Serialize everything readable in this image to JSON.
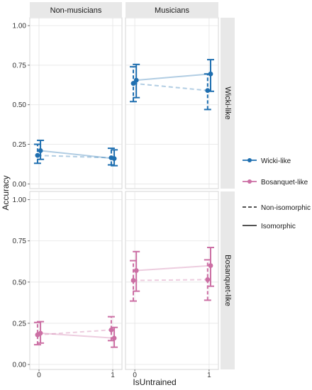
{
  "chart_data": {
    "type": "scatter",
    "title": "",
    "xlabel": "IsUntrained",
    "ylabel": "Accuracy",
    "x_ticks": [
      0,
      1
    ],
    "ylim": [
      -0.03,
      1.05
    ],
    "y_ticks": [
      "0.00",
      "0.25",
      "0.50",
      "0.75",
      "1.00"
    ],
    "facet_columns": [
      "Non-musicians",
      "Musicians"
    ],
    "facet_rows": [
      "Wicki-like",
      "Bosanquet-like"
    ],
    "grid": true,
    "legend_placement": "right",
    "legend": {
      "colour": [
        {
          "label": "Wicki-like",
          "color": "#1f6fb0"
        },
        {
          "label": "Bosanquet-like",
          "color": "#cc6fa4"
        }
      ],
      "linetype": [
        {
          "label": "Non-isomorphic",
          "style": "dashed"
        },
        {
          "label": "Isomorphic",
          "style": "solid"
        }
      ]
    },
    "panels": [
      {
        "column": "Non-musicians",
        "row": "Wicki-like",
        "color": "#1f6fb0",
        "series": [
          {
            "name": "Non-isomorphic",
            "points": [
              {
                "x": 0,
                "y": 0.18,
                "lo": 0.13,
                "hi": 0.25
              },
              {
                "x": 1,
                "y": 0.165,
                "lo": 0.12,
                "hi": 0.225
              }
            ]
          },
          {
            "name": "Isomorphic",
            "points": [
              {
                "x": 0,
                "y": 0.21,
                "lo": 0.155,
                "hi": 0.275
              },
              {
                "x": 1,
                "y": 0.16,
                "lo": 0.115,
                "hi": 0.215
              }
            ]
          }
        ]
      },
      {
        "column": "Musicians",
        "row": "Wicki-like",
        "color": "#1f6fb0",
        "series": [
          {
            "name": "Non-isomorphic",
            "points": [
              {
                "x": 0,
                "y": 0.635,
                "lo": 0.52,
                "hi": 0.74
              },
              {
                "x": 1,
                "y": 0.59,
                "lo": 0.47,
                "hi": 0.695
              }
            ]
          },
          {
            "name": "Isomorphic",
            "points": [
              {
                "x": 0,
                "y": 0.655,
                "lo": 0.545,
                "hi": 0.755
              },
              {
                "x": 1,
                "y": 0.695,
                "lo": 0.585,
                "hi": 0.785
              }
            ]
          }
        ]
      },
      {
        "column": "Non-musicians",
        "row": "Bosanquet-like",
        "color": "#cc6fa4",
        "series": [
          {
            "name": "Non-isomorphic",
            "points": [
              {
                "x": 0,
                "y": 0.18,
                "lo": 0.12,
                "hi": 0.255
              },
              {
                "x": 1,
                "y": 0.21,
                "lo": 0.145,
                "hi": 0.29
              }
            ]
          },
          {
            "name": "Isomorphic",
            "points": [
              {
                "x": 0,
                "y": 0.19,
                "lo": 0.13,
                "hi": 0.26
              },
              {
                "x": 1,
                "y": 0.16,
                "lo": 0.105,
                "hi": 0.225
              }
            ]
          }
        ]
      },
      {
        "column": "Musicians",
        "row": "Bosanquet-like",
        "color": "#cc6fa4",
        "series": [
          {
            "name": "Non-isomorphic",
            "points": [
              {
                "x": 0,
                "y": 0.51,
                "lo": 0.385,
                "hi": 0.63
              },
              {
                "x": 1,
                "y": 0.515,
                "lo": 0.39,
                "hi": 0.635
              }
            ]
          },
          {
            "name": "Isomorphic",
            "points": [
              {
                "x": 0,
                "y": 0.57,
                "lo": 0.445,
                "hi": 0.685
              },
              {
                "x": 1,
                "y": 0.6,
                "lo": 0.475,
                "hi": 0.71
              }
            ]
          }
        ]
      }
    ]
  }
}
